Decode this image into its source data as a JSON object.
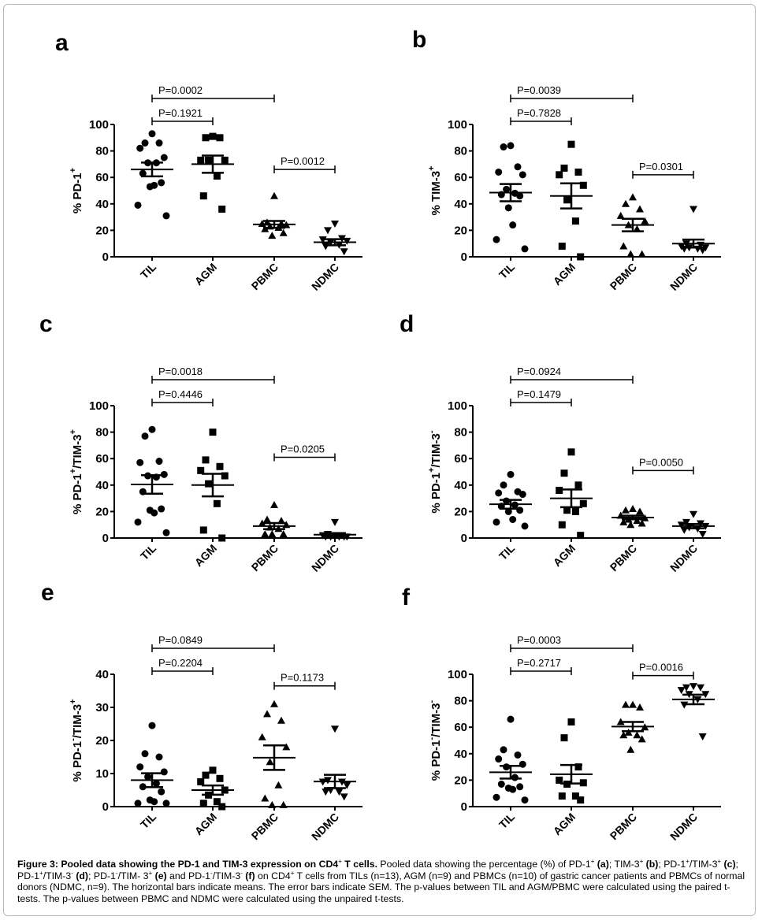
{
  "figure": {
    "caption_title": "Figure 3: Pooled data showing the PD-1 and TIM-3 expression on CD4",
    "caption_title_sup": "+",
    "caption_title_end": " T cells.",
    "caption_parts": [
      {
        "t": " Pooled data showing the percentage (%) of PD-1"
      },
      {
        "sup": "+"
      },
      {
        "b": " (a)"
      },
      {
        "t": "; TIM-3"
      },
      {
        "sup": "+"
      },
      {
        "b": " (b)"
      },
      {
        "t": "; PD-1"
      },
      {
        "sup": "+"
      },
      {
        "t": "/TIM-3"
      },
      {
        "sup": "+"
      },
      {
        "b": " (c)"
      },
      {
        "t": "; PD-1"
      },
      {
        "sup": "+"
      },
      {
        "t": "/TIM-3"
      },
      {
        "sup": "-"
      },
      {
        "b": " (d)"
      },
      {
        "t": "; PD-1"
      },
      {
        "sup": "-"
      },
      {
        "t": "/TIM- 3"
      },
      {
        "sup": "+"
      },
      {
        "b": " (e)"
      },
      {
        "t": " and PD-1"
      },
      {
        "sup": "-"
      },
      {
        "t": "/TIM-3"
      },
      {
        "sup": "-"
      },
      {
        "b": " (f)"
      },
      {
        "t": " on CD4"
      },
      {
        "sup": "+"
      },
      {
        "t": " T cells from TILs (n=13), AGM (n=9) and PBMCs (n=10) of gastric cancer patients and PBMCs of normal donors (NDMC, n=9). The horizontal bars indicate means. The error bars indicate SEM. The p-values between TIL and AGM/PBMC were calculated using the paired t-tests. The p-values between PBMC and NDMC were calculated using the unpaired t-tests."
      }
    ]
  },
  "chart_data": [
    {
      "panel": "a",
      "type": "scatter",
      "ylabel": "% PD-1",
      "ylabel_sup": "+",
      "ylabel_rest": "",
      "ylabel_sup2": "",
      "ylim": [
        0,
        100
      ],
      "yticks": [
        0,
        20,
        40,
        60,
        80,
        100
      ],
      "categories": [
        "TIL",
        "AGM",
        "PBMC",
        "NDMC"
      ],
      "series": [
        {
          "name": "TIL",
          "marker": "circle",
          "values": [
            93,
            86,
            86,
            82,
            75,
            71,
            71,
            63,
            56,
            53,
            54,
            39,
            31
          ],
          "mean": 66,
          "sem": 5.2
        },
        {
          "name": "AGM",
          "marker": "square",
          "values": [
            91,
            90,
            90,
            73,
            73,
            73,
            61,
            46,
            36
          ],
          "mean": 70,
          "sem": 6.5
        },
        {
          "name": "PBMC",
          "marker": "triangle-up",
          "values": [
            46,
            26,
            25,
            25,
            24,
            23,
            22,
            21,
            18,
            16
          ],
          "mean": 24.5,
          "sem": 2.6
        },
        {
          "name": "NDMC",
          "marker": "triangle-down",
          "values": [
            25,
            20,
            14,
            13,
            12,
            11,
            9,
            8,
            4
          ],
          "mean": 11,
          "sem": 2.3
        }
      ],
      "comparisons": [
        {
          "from": "TIL",
          "to": "PBMC",
          "label": "P=0.0002",
          "level": 2
        },
        {
          "from": "TIL",
          "to": "AGM",
          "label": "P=0.1921",
          "level": 1
        },
        {
          "from": "PBMC",
          "to": "NDMC",
          "label": "P=0.0012",
          "at": 66
        }
      ]
    },
    {
      "panel": "b",
      "type": "scatter",
      "ylabel": "% TIM-3",
      "ylabel_sup": "+",
      "ylabel_rest": "",
      "ylabel_sup2": "",
      "ylim": [
        0,
        100
      ],
      "yticks": [
        0,
        20,
        40,
        60,
        80,
        100
      ],
      "categories": [
        "TIL",
        "AGM",
        "PBMC",
        "NDMC"
      ],
      "series": [
        {
          "name": "TIL",
          "marker": "circle",
          "values": [
            84,
            83,
            68,
            64,
            62,
            51,
            48,
            47,
            46,
            37,
            24,
            13,
            6
          ],
          "mean": 48.5,
          "sem": 6.5
        },
        {
          "name": "AGM",
          "marker": "square",
          "values": [
            85,
            67,
            64,
            62,
            54,
            43,
            27,
            8,
            0
          ],
          "mean": 46,
          "sem": 9.5
        },
        {
          "name": "PBMC",
          "marker": "triangle-up",
          "values": [
            45,
            40,
            36,
            31,
            27,
            24,
            21,
            8,
            2,
            2
          ],
          "mean": 24,
          "sem": 4.7
        },
        {
          "name": "NDMC",
          "marker": "triangle-down",
          "values": [
            36,
            10,
            9,
            8,
            7,
            7,
            6,
            6,
            5
          ],
          "mean": 10,
          "sem": 3.0
        }
      ],
      "comparisons": [
        {
          "from": "TIL",
          "to": "PBMC",
          "label": "P=0.0039",
          "level": 2
        },
        {
          "from": "TIL",
          "to": "AGM",
          "label": "P=0.7828",
          "level": 1
        },
        {
          "from": "PBMC",
          "to": "NDMC",
          "label": "P=0.0301",
          "at": 62
        }
      ]
    },
    {
      "panel": "c",
      "type": "scatter",
      "ylabel": "% PD-1",
      "ylabel_sup": "+",
      "ylabel_rest": "/TIM-3",
      "ylabel_sup2": "+",
      "ylim": [
        0,
        100
      ],
      "yticks": [
        0,
        20,
        40,
        60,
        80,
        100
      ],
      "categories": [
        "TIL",
        "AGM",
        "PBMC",
        "NDMC"
      ],
      "series": [
        {
          "name": "TIL",
          "marker": "circle",
          "values": [
            82,
            77,
            58,
            57,
            48,
            47,
            46,
            35,
            22,
            21,
            19,
            12,
            4
          ],
          "mean": 40.5,
          "sem": 7.0
        },
        {
          "name": "AGM",
          "marker": "square",
          "values": [
            80,
            59,
            54,
            51,
            47,
            41,
            26,
            6,
            0
          ],
          "mean": 40,
          "sem": 8.5
        },
        {
          "name": "PBMC",
          "marker": "triangle-up",
          "values": [
            25,
            14,
            13,
            11,
            10,
            8,
            7,
            3,
            3,
            3
          ],
          "mean": 9,
          "sem": 2.3
        },
        {
          "name": "NDMC",
          "marker": "triangle-down",
          "values": [
            12,
            3,
            2,
            2,
            1,
            1,
            1,
            1,
            1
          ],
          "mean": 2.5,
          "sem": 1.2
        }
      ],
      "comparisons": [
        {
          "from": "TIL",
          "to": "PBMC",
          "label": "P=0.0018",
          "level": 2
        },
        {
          "from": "TIL",
          "to": "AGM",
          "label": "P=0.4446",
          "level": 1
        },
        {
          "from": "PBMC",
          "to": "NDMC",
          "label": "P=0.0205",
          "at": 61
        }
      ]
    },
    {
      "panel": "d",
      "type": "scatter",
      "ylabel": "% PD-1",
      "ylabel_sup": "+",
      "ylabel_rest": "/TIM-3",
      "ylabel_sup2": "-",
      "ylim": [
        0,
        100
      ],
      "yticks": [
        0,
        20,
        40,
        60,
        80,
        100
      ],
      "categories": [
        "TIL",
        "AGM",
        "PBMC",
        "NDMC"
      ],
      "series": [
        {
          "name": "TIL",
          "marker": "circle",
          "values": [
            48,
            40,
            35,
            34,
            33,
            28,
            25,
            24,
            21,
            20,
            14,
            12,
            9
          ],
          "mean": 25.5,
          "sem": 3.3
        },
        {
          "name": "AGM",
          "marker": "square",
          "values": [
            65,
            49,
            40,
            36,
            26,
            21,
            20,
            10,
            2
          ],
          "mean": 30,
          "sem": 6.7
        },
        {
          "name": "PBMC",
          "marker": "triangle-up",
          "values": [
            22,
            21,
            20,
            17,
            15,
            14,
            13,
            12,
            11,
            10
          ],
          "mean": 15.5,
          "sem": 1.4
        },
        {
          "name": "NDMC",
          "marker": "triangle-down",
          "values": [
            18,
            12,
            11,
            10,
            9,
            8,
            7,
            6,
            3
          ],
          "mean": 9,
          "sem": 1.6
        }
      ],
      "comparisons": [
        {
          "from": "TIL",
          "to": "PBMC",
          "label": "P=0.0924",
          "level": 2
        },
        {
          "from": "TIL",
          "to": "AGM",
          "label": "P=0.1479",
          "level": 1
        },
        {
          "from": "PBMC",
          "to": "NDMC",
          "label": "P=0.0050",
          "at": 51
        }
      ]
    },
    {
      "panel": "e",
      "type": "scatter",
      "ylabel": "% PD-1",
      "ylabel_sup": "-",
      "ylabel_rest": "/TIM-3",
      "ylabel_sup2": "+",
      "ylim": [
        0,
        40
      ],
      "yticks": [
        0,
        10,
        20,
        30,
        40
      ],
      "categories": [
        "TIL",
        "AGM",
        "PBMC",
        "NDMC"
      ],
      "series": [
        {
          "name": "TIL",
          "marker": "circle",
          "values": [
            24.5,
            16,
            15,
            12,
            10.5,
            9,
            7,
            6,
            4.5,
            2,
            1.5,
            1,
            1
          ],
          "mean": 8,
          "sem": 2.1
        },
        {
          "name": "AGM",
          "marker": "square",
          "values": [
            11,
            9.5,
            8.5,
            7.5,
            5,
            3.5,
            1.5,
            1,
            0
          ],
          "mean": 5,
          "sem": 1.4
        },
        {
          "name": "PBMC",
          "marker": "triangle-up",
          "values": [
            31,
            28,
            26,
            21,
            18,
            13.5,
            6.5,
            2.5,
            0.5,
            0.5
          ],
          "mean": 14.8,
          "sem": 3.7
        },
        {
          "name": "NDMC",
          "marker": "triangle-down",
          "values": [
            23.5,
            8,
            7.5,
            7.5,
            6.5,
            5,
            4.5,
            4.5,
            3
          ],
          "mean": 7.6,
          "sem": 2.0
        }
      ],
      "comparisons": [
        {
          "from": "TIL",
          "to": "PBMC",
          "label": "P=0.0849",
          "level": 2
        },
        {
          "from": "TIL",
          "to": "AGM",
          "label": "P=0.2204",
          "level": 1
        },
        {
          "from": "PBMC",
          "to": "NDMC",
          "label": "P=0.1173",
          "at": 36.5
        }
      ]
    },
    {
      "panel": "f",
      "type": "scatter",
      "ylabel": "% PD-1",
      "ylabel_sup": "-",
      "ylabel_rest": "/TIM-3",
      "ylabel_sup2": "-",
      "ylim": [
        0,
        100
      ],
      "yticks": [
        0,
        20,
        40,
        60,
        80,
        100
      ],
      "categories": [
        "TIL",
        "AGM",
        "PBMC",
        "NDMC"
      ],
      "series": [
        {
          "name": "TIL",
          "marker": "circle",
          "values": [
            66,
            43,
            39,
            36,
            32,
            30,
            22,
            17,
            15,
            14,
            13,
            7,
            5
          ],
          "mean": 26,
          "sem": 4.8
        },
        {
          "name": "AGM",
          "marker": "square",
          "values": [
            64,
            52,
            30,
            20,
            18,
            17,
            8,
            8,
            5
          ],
          "mean": 24.5,
          "sem": 7.0
        },
        {
          "name": "PBMC",
          "marker": "triangle-up",
          "values": [
            77,
            77,
            75,
            64,
            60,
            56,
            54,
            54,
            51,
            43
          ],
          "mean": 60.5,
          "sem": 3.5
        },
        {
          "name": "NDMC",
          "marker": "triangle-down",
          "values": [
            91,
            90,
            90,
            88,
            85,
            85,
            81,
            77,
            53
          ],
          "mean": 81,
          "sem": 3.6
        }
      ],
      "comparisons": [
        {
          "from": "TIL",
          "to": "PBMC",
          "label": "P=0.0003",
          "level": 2
        },
        {
          "from": "TIL",
          "to": "AGM",
          "label": "P=0.2717",
          "level": 1
        },
        {
          "from": "PBMC",
          "to": "NDMC",
          "label": "P=0.0016",
          "at": 99
        }
      ]
    }
  ]
}
